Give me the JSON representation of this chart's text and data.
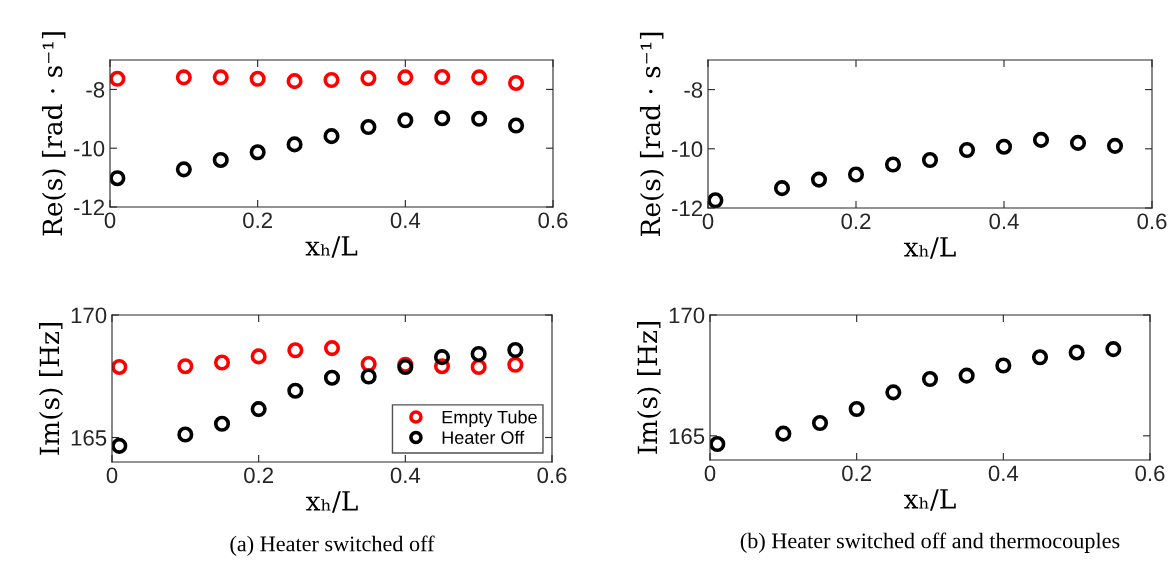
{
  "chart_data": [
    {
      "type": "scatter",
      "xlabel": "xₕ/L",
      "ylabel": "Re(s) [rad · s⁻¹]",
      "xlim": [
        0,
        0.6
      ],
      "xticks": [
        0,
        0.2,
        0.4,
        0.6
      ],
      "ylim": [
        -12,
        -7
      ],
      "yticks": [
        -12,
        -10,
        -8
      ],
      "marker": "circle",
      "grid": false,
      "x": [
        0.01,
        0.1,
        0.15,
        0.2,
        0.25,
        0.3,
        0.35,
        0.4,
        0.45,
        0.5,
        0.55
      ],
      "series": [
        {
          "color": "#ff0000",
          "values": [
            -7.64,
            -7.59,
            -7.59,
            -7.64,
            -7.72,
            -7.68,
            -7.62,
            -7.59,
            -7.58,
            -7.59,
            -7.78
          ]
        },
        {
          "color": "#000000",
          "values": [
            -11.02,
            -10.72,
            -10.4,
            -10.14,
            -9.87,
            -9.59,
            -9.28,
            -9.05,
            -8.98,
            -9.0,
            -9.23
          ]
        }
      ]
    },
    {
      "type": "scatter",
      "xlabel": "xₕ/L",
      "ylabel": "Re(s) [rad · s⁻¹]",
      "xlim": [
        0,
        0.6
      ],
      "xticks": [
        0,
        0.2,
        0.4,
        0.6
      ],
      "ylim": [
        -12,
        -7
      ],
      "yticks": [
        -12,
        -10,
        -8
      ],
      "marker": "circle",
      "grid": false,
      "x": [
        0.01,
        0.1,
        0.15,
        0.2,
        0.25,
        0.3,
        0.35,
        0.4,
        0.45,
        0.5,
        0.55
      ],
      "series": [
        {
          "color": "#000000",
          "values": [
            -11.74,
            -11.33,
            -11.04,
            -10.87,
            -10.53,
            -10.38,
            -10.04,
            -9.93,
            -9.7,
            -9.8,
            -9.9
          ]
        }
      ]
    },
    {
      "type": "scatter",
      "xlabel": "xₕ/L",
      "ylabel": "Im(s) [Hz]",
      "xlim": [
        0,
        0.6
      ],
      "xticks": [
        0,
        0.2,
        0.4,
        0.6
      ],
      "ylim": [
        164,
        170
      ],
      "yticks": [
        165,
        170
      ],
      "marker": "circle",
      "grid": false,
      "legend": "bottom right",
      "annotations": [
        "(a) Heater switched off"
      ],
      "x": [
        0.01,
        0.1,
        0.15,
        0.2,
        0.25,
        0.3,
        0.35,
        0.4,
        0.45,
        0.5,
        0.55
      ],
      "series": [
        {
          "name": "Empty Tube",
          "color": "#ff0000",
          "values": [
            167.88,
            167.91,
            168.06,
            168.31,
            168.56,
            168.65,
            168.0,
            167.97,
            167.91,
            167.88,
            167.97
          ]
        },
        {
          "name": "Heater Off",
          "color": "#000000",
          "values": [
            164.66,
            165.12,
            165.56,
            166.16,
            166.91,
            167.44,
            167.49,
            167.88,
            168.28,
            168.41,
            168.57
          ]
        }
      ]
    },
    {
      "type": "scatter",
      "xlabel": "xₕ/L",
      "ylabel": "Im(s) [Hz]",
      "xlim": [
        0,
        0.6
      ],
      "xticks": [
        0,
        0.2,
        0.4,
        0.6
      ],
      "ylim": [
        164,
        170
      ],
      "yticks": [
        165,
        170
      ],
      "marker": "circle",
      "grid": false,
      "annotations": [
        "(b) Heater switched off and thermocouples"
      ],
      "x": [
        0.01,
        0.1,
        0.15,
        0.2,
        0.25,
        0.3,
        0.35,
        0.4,
        0.45,
        0.5,
        0.55
      ],
      "series": [
        {
          "color": "#000000",
          "values": [
            164.66,
            165.09,
            165.53,
            166.11,
            166.8,
            167.35,
            167.49,
            167.91,
            168.25,
            168.45,
            168.59
          ]
        }
      ]
    }
  ]
}
